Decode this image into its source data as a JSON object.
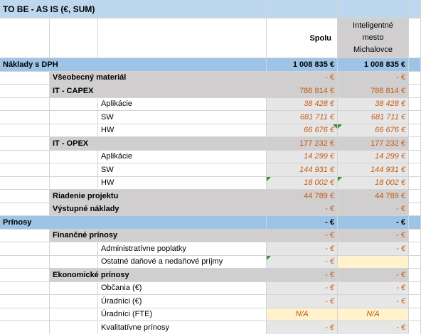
{
  "title": "TO BE - AS IS (€, SUM)",
  "columns": {
    "spolu": "Spolu",
    "mesto_line1": "Inteligentné",
    "mesto_line2": "mesto",
    "mesto_line3": "Michalovce"
  },
  "rows": [
    {
      "label": "Náklady s DPH",
      "spolu": "1 008 835 €",
      "mesto": "1 008 835 €"
    },
    {
      "label": "Všeobecný materiál",
      "spolu": "- €",
      "mesto": "- €"
    },
    {
      "label": "IT - CAPEX",
      "spolu": "786 814 €",
      "mesto": "786 814 €"
    },
    {
      "label": "Aplikácie",
      "spolu": "38 428 €",
      "mesto": "38 428 €"
    },
    {
      "label": "SW",
      "spolu": "681 711 €",
      "mesto": "681 711 €"
    },
    {
      "label": "HW",
      "spolu": "66 676 €",
      "mesto": "66 676 €"
    },
    {
      "label": "IT - OPEX",
      "spolu": "177 232 €",
      "mesto": "177 232 €"
    },
    {
      "label": "Aplikácie",
      "spolu": "14 299 €",
      "mesto": "14 299 €"
    },
    {
      "label": "SW",
      "spolu": "144 931 €",
      "mesto": "144 931 €"
    },
    {
      "label": "HW",
      "spolu": "18 002 €",
      "mesto": "18 002 €"
    },
    {
      "label": "Riadenie projektu",
      "spolu": "44 789 €",
      "mesto": "44 789 €"
    },
    {
      "label": "Výstupné náklady",
      "spolu": "- €",
      "mesto": "- €"
    },
    {
      "label": "Prínosy",
      "spolu": "- €",
      "mesto": "- €"
    },
    {
      "label": "Finančné prínosy",
      "spolu": "- €",
      "mesto": "- €"
    },
    {
      "label": "Administratívne poplatky",
      "spolu": "- €",
      "mesto": "- €"
    },
    {
      "label": "Ostatné daňové a nedaňové príjmy",
      "spolu": "- €",
      "mesto": ""
    },
    {
      "label": "Ekonomické prínosy",
      "spolu": "- €",
      "mesto": "- €"
    },
    {
      "label": "Občania (€)",
      "spolu": "- €",
      "mesto": "- €"
    },
    {
      "label": "Úradníci (€)",
      "spolu": "- €",
      "mesto": "- €"
    },
    {
      "label": "Úradníci (FTE)",
      "spolu": "N/A",
      "mesto": "N/A"
    },
    {
      "label": "Kvalitatívne prínosy",
      "spolu": "- €",
      "mesto": "- €"
    }
  ],
  "colors": {
    "section_blue": "#9dc3e6",
    "group_grey": "#d0cece",
    "value_orange": "#c55a11",
    "na_yellow": "#fff2cc",
    "comment_marker": "#3a8a3a"
  }
}
